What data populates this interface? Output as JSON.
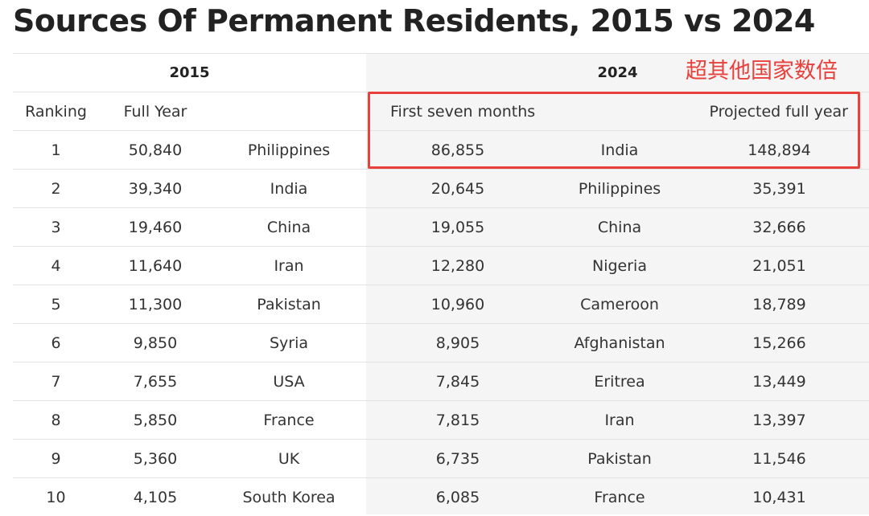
{
  "title": "Sources Of Permanent Residents, 2015 vs 2024",
  "annotation": {
    "text": "超其他国家数倍",
    "color": "#e8403c"
  },
  "headers": {
    "year_2015": "2015",
    "year_2024": "2024",
    "ranking": "Ranking",
    "full_year": "Full Year",
    "first_seven_months": "First seven months",
    "projected_full_year": "Projected full year"
  },
  "rows": [
    {
      "rank": "1",
      "full_2015": "50,840",
      "country_2015": "Philippines",
      "first7_2024": "86,855",
      "country_2024": "India",
      "projected_2024": "148,894"
    },
    {
      "rank": "2",
      "full_2015": "39,340",
      "country_2015": "India",
      "first7_2024": "20,645",
      "country_2024": "Philippines",
      "projected_2024": "35,391"
    },
    {
      "rank": "3",
      "full_2015": "19,460",
      "country_2015": "China",
      "first7_2024": "19,055",
      "country_2024": "China",
      "projected_2024": "32,666"
    },
    {
      "rank": "4",
      "full_2015": "11,640",
      "country_2015": "Iran",
      "first7_2024": "12,280",
      "country_2024": "Nigeria",
      "projected_2024": "21,051"
    },
    {
      "rank": "5",
      "full_2015": "11,300",
      "country_2015": "Pakistan",
      "first7_2024": "10,960",
      "country_2024": "Cameroon",
      "projected_2024": "18,789"
    },
    {
      "rank": "6",
      "full_2015": "9,850",
      "country_2015": "Syria",
      "first7_2024": "8,905",
      "country_2024": "Afghanistan",
      "projected_2024": "15,266"
    },
    {
      "rank": "7",
      "full_2015": "7,655",
      "country_2015": "USA",
      "first7_2024": "7,845",
      "country_2024": "Eritrea",
      "projected_2024": "13,449"
    },
    {
      "rank": "8",
      "full_2015": "5,850",
      "country_2015": "France",
      "first7_2024": "7,815",
      "country_2024": "Iran",
      "projected_2024": "13,397"
    },
    {
      "rank": "9",
      "full_2015": "5,360",
      "country_2015": "UK",
      "first7_2024": "6,735",
      "country_2024": "Pakistan",
      "projected_2024": "11,546"
    },
    {
      "rank": "10",
      "full_2015": "4,105",
      "country_2015": "South Korea",
      "first7_2024": "6,085",
      "country_2024": "France",
      "projected_2024": "10,431"
    }
  ]
}
